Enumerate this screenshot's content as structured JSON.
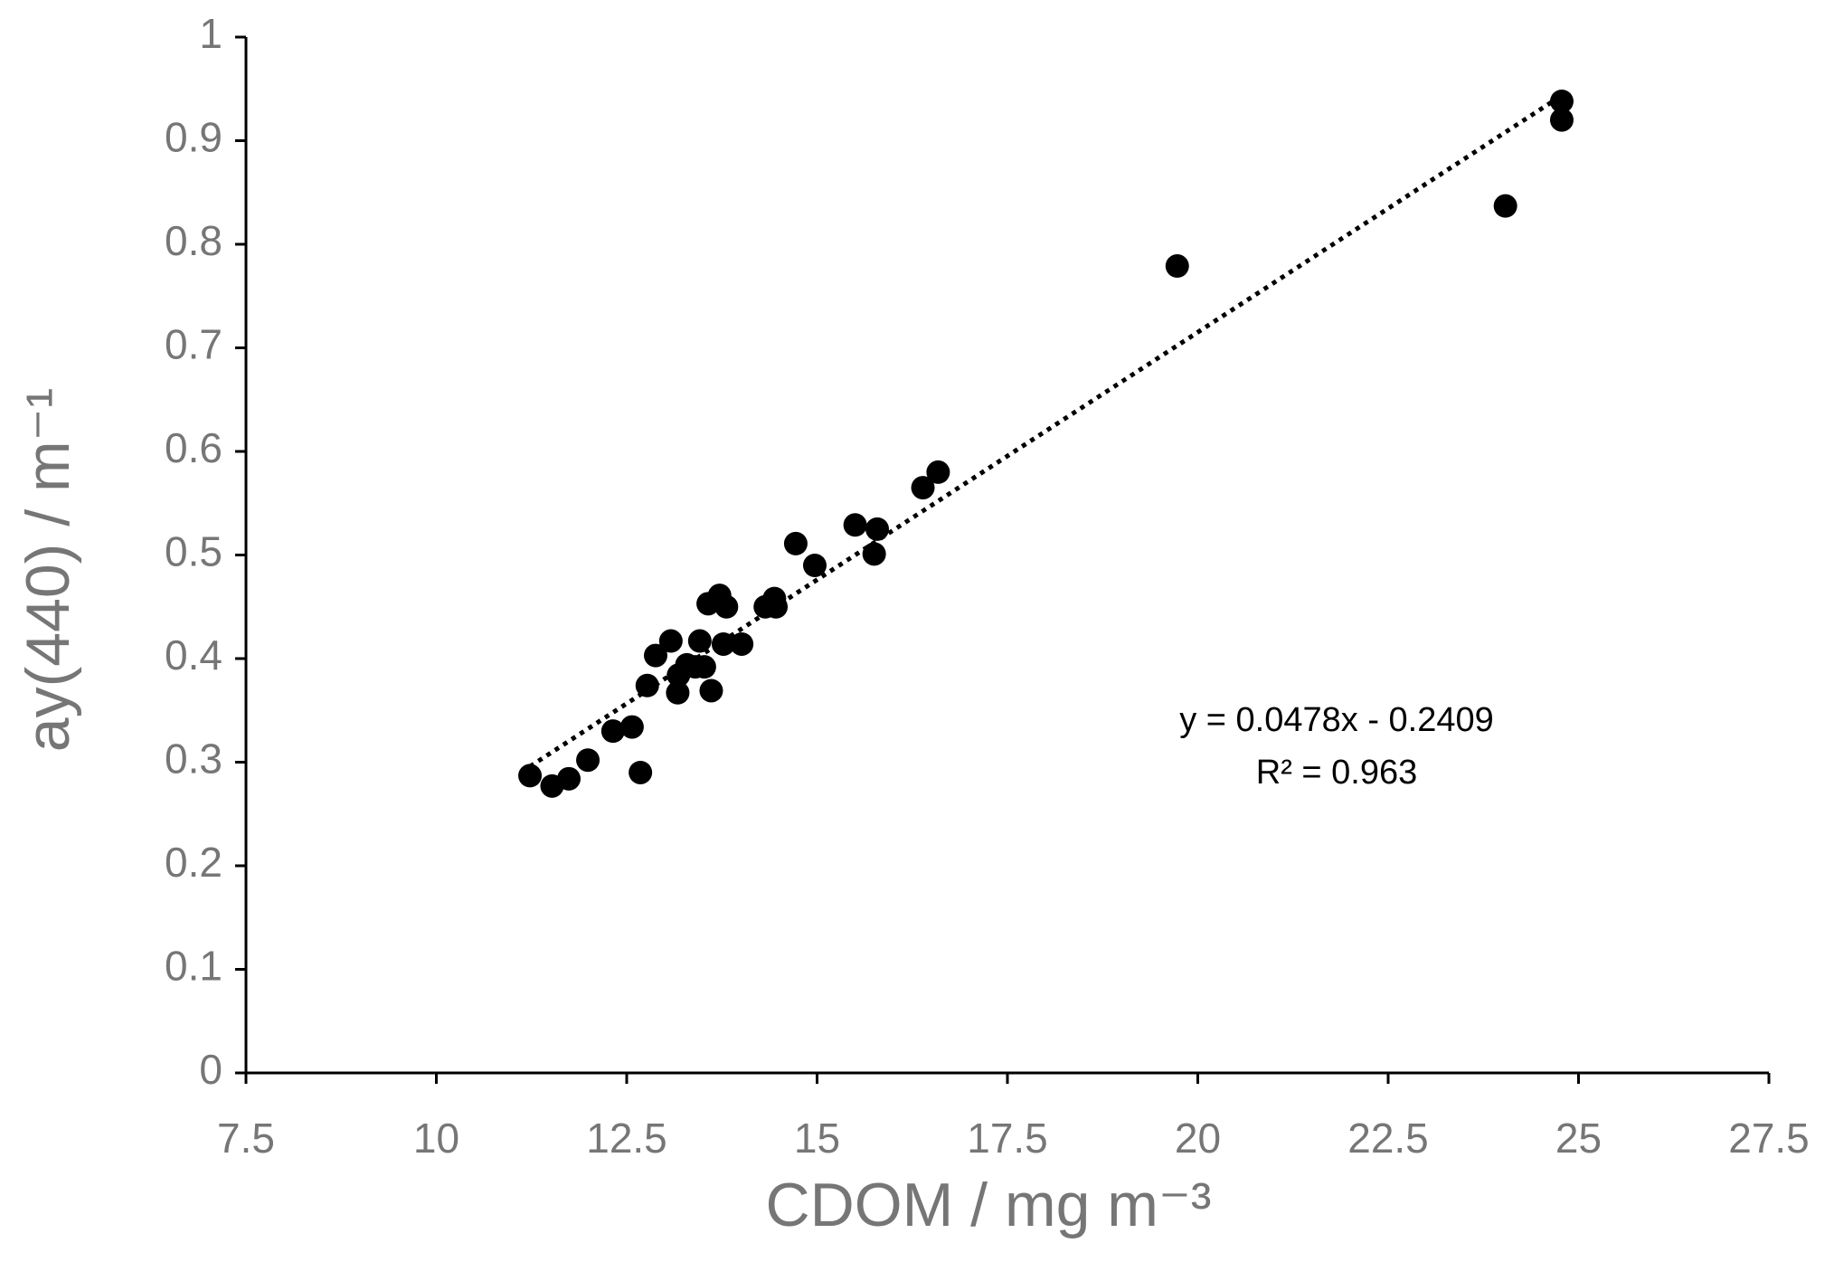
{
  "chart_data": {
    "type": "scatter",
    "x_label": "CDOM / mg m⁻³",
    "y_label": "ay(440) / m⁻¹",
    "series": [
      {
        "color": "#000000",
        "x": [
          11.23,
          11.52,
          11.74,
          11.99,
          12.32,
          12.57,
          12.68,
          12.77,
          12.88,
          13.08,
          13.17,
          13.18,
          13.29,
          13.4,
          13.46,
          13.52,
          13.57,
          13.61,
          13.72,
          13.77,
          13.81,
          14.01,
          14.32,
          14.44,
          14.46,
          14.72,
          14.97,
          15.5,
          15.75,
          15.79,
          16.39,
          16.59,
          19.73,
          24.04,
          24.78,
          24.78
        ],
        "values": [
          0.287,
          0.277,
          0.284,
          0.302,
          0.33,
          0.334,
          0.29,
          0.374,
          0.403,
          0.417,
          0.367,
          0.384,
          0.394,
          0.392,
          0.417,
          0.392,
          0.453,
          0.369,
          0.461,
          0.414,
          0.45,
          0.414,
          0.45,
          0.458,
          0.45,
          0.511,
          0.49,
          0.529,
          0.501,
          0.525,
          0.565,
          0.58,
          0.779,
          0.837,
          0.938,
          0.92
        ]
      }
    ],
    "trendline": {
      "slope": 0.0478,
      "intercept": -0.2409,
      "equation": "y = 0.0478x - 0.2409",
      "r2_label": "R² = 0.963"
    },
    "xlim": [
      7.5,
      27.5
    ],
    "xticks": [
      7.5,
      10,
      12.5,
      15,
      17.5,
      20,
      22.5,
      25,
      27.5
    ],
    "ylim": [
      0,
      1
    ],
    "yticks": [
      0,
      0.1,
      0.2,
      0.3,
      0.4,
      0.5,
      0.6,
      0.7,
      0.8,
      0.9,
      1
    ],
    "grid": false
  }
}
